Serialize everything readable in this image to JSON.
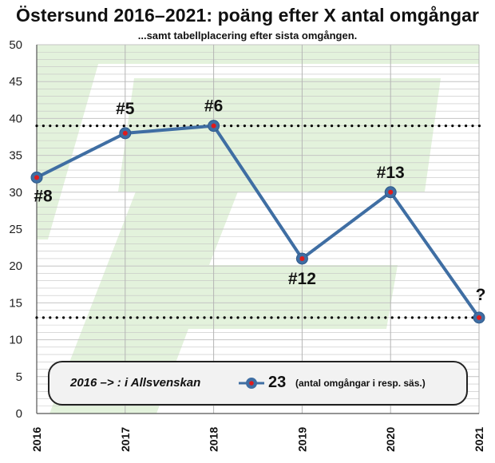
{
  "chart_data": {
    "type": "line",
    "title": "Östersund 2016–2021: poäng efter X antal omgångar",
    "subtitle": "...samt tabellplacering efter sista omgången.",
    "x": [
      "2016",
      "2017",
      "2018",
      "2019",
      "2020",
      "2021"
    ],
    "values": [
      32,
      38,
      39,
      21,
      30,
      13
    ],
    "point_labels": [
      "#8",
      "#5",
      "#6",
      "#12",
      "#13",
      "?"
    ],
    "ylim": [
      0,
      50
    ],
    "yticks": [
      0,
      5,
      10,
      15,
      20,
      25,
      30,
      35,
      40,
      45,
      50
    ],
    "reference_lines": [
      39,
      13
    ],
    "grid": true,
    "legend": {
      "label": "2016 –> : i Allsvenskan",
      "value": "23",
      "note": "(antal omgångar i resp. säs.)",
      "placement": "bottom"
    },
    "colors": {
      "line": "#3f6ea3",
      "marker_center": "#e01b1b",
      "background_logo": "#e3f2dc",
      "grid": "#c4c4c4"
    }
  }
}
